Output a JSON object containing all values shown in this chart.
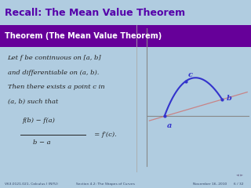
{
  "title": "Recall: The Mean Value Theorem",
  "title_bg": "#b0cce0",
  "title_color": "#5500aa",
  "theorem_title": "Theorem (The Mean Value Theorem)",
  "theorem_title_bg": "#660099",
  "theorem_title_color": "#ffffff",
  "body_bg": "#e0e8f4",
  "text_lines": [
    "Let f be continuous on [a, b]",
    "and differentiable on (a, b).",
    "Then there exists a point c in",
    "(a, b) such that"
  ],
  "formula_num": "f(b) − f(a)",
  "formula_den": "b − a",
  "formula_rhs": "= f′(c).",
  "footer_left": "V63.0121.021, Calculus I (NYU)",
  "footer_mid": "Section 4.2: The Shapes of Curves",
  "footer_right": "November 16, 2010",
  "footer_page": "6 / 32",
  "footer_bg": "#b0cce0",
  "curve_color": "#3333cc",
  "secant_color": "#cc7777",
  "dot_color": "#3333cc",
  "axis_color": "#888888",
  "label_color": "#3333cc",
  "nav_color": "#777799"
}
